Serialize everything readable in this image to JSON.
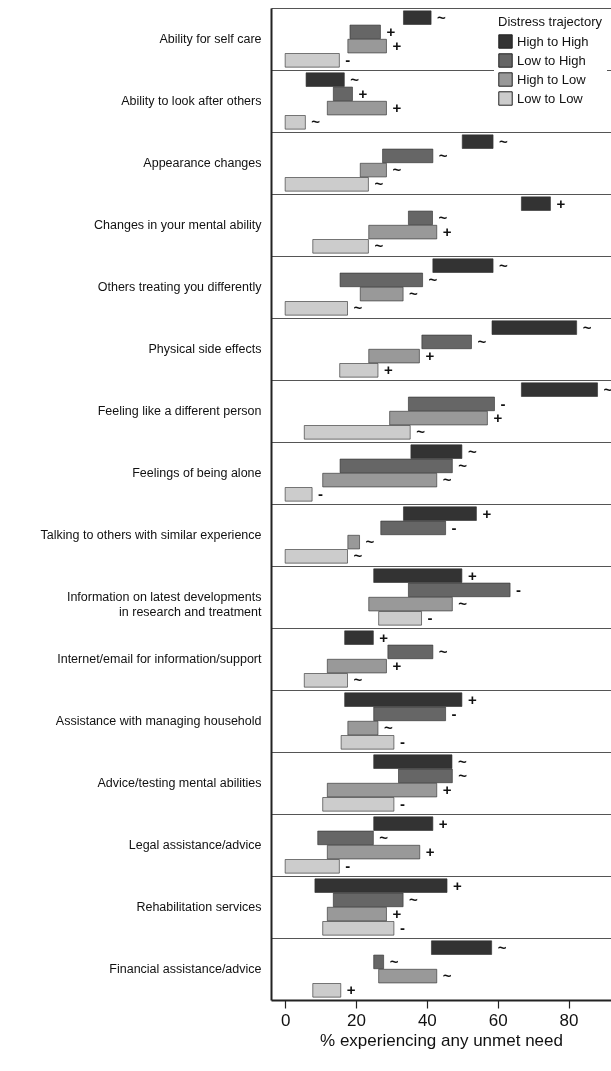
{
  "chart_data": {
    "type": "bar",
    "orientation": "horizontal",
    "xlabel": "% experiencing any unmet need",
    "legend_title": "Distress trajectory",
    "legend": "top right",
    "grid": "y",
    "xlim": [
      -4,
      92
    ],
    "xticks": [
      0,
      20,
      40,
      60,
      80
    ],
    "categories": [
      "Ability for self care",
      "Ability to look after others",
      "Appearance changes",
      "Changes in your mental ability",
      "Others treating you differently",
      "Physical side effects",
      "Feeling like a different person",
      "Feelings of being alone",
      "Talking to others with similar experience",
      "Information on latest developments in research and treatment",
      "Internet/email for information/support",
      "Assistance with managing household",
      "Advice/testing mental abilities",
      "Legal assistance/advice",
      "Rehabilitation services",
      "Financial assistance/advice"
    ],
    "series": [
      {
        "name": "High to High",
        "color": "#333333",
        "base": [
          33.4,
          5.9,
          50.0,
          66.7,
          41.7,
          58.4,
          66.7,
          35.5,
          33.4,
          25.0,
          16.8,
          16.8,
          25.0,
          25.0,
          8.4,
          41.3
        ],
        "values": [
          7.8,
          10.8,
          8.7,
          8.2,
          17.0,
          23.9,
          21.5,
          14.4,
          20.6,
          24.9,
          8.1,
          33.1,
          22.1,
          16.7,
          37.3,
          17.0
        ],
        "value_labels": [
          "~",
          "~",
          "~",
          "+",
          "~",
          "~",
          "~",
          "~",
          "+",
          "+",
          "+",
          "+",
          "~",
          "+",
          "+",
          "~"
        ]
      },
      {
        "name": "Low to High",
        "color": "#666666",
        "base": [
          18.3,
          13.6,
          27.5,
          34.8,
          15.5,
          38.6,
          34.8,
          15.5,
          27.0,
          34.8,
          29.0,
          25.0,
          32.0,
          9.2,
          13.6,
          25.0
        ],
        "values": [
          8.6,
          5.4,
          14.2,
          6.8,
          23.3,
          14.0,
          24.3,
          31.7,
          18.3,
          28.7,
          12.7,
          20.3,
          15.2,
          15.7,
          19.7,
          2.8
        ],
        "value_labels": [
          "+",
          "+",
          "~",
          "~",
          "~",
          "~",
          "-",
          "~",
          "-",
          "-",
          "~",
          "-",
          "~",
          "~",
          "~",
          "~"
        ]
      },
      {
        "name": "High to Low",
        "color": "#999999",
        "base": [
          17.7,
          11.9,
          21.2,
          23.6,
          21.2,
          23.6,
          29.5,
          10.6,
          17.7,
          23.6,
          11.9,
          17.7,
          11.9,
          11.9,
          11.9,
          26.4
        ],
        "values": [
          10.9,
          16.7,
          7.4,
          19.2,
          12.1,
          14.3,
          27.6,
          32.2,
          3.3,
          23.6,
          16.7,
          8.5,
          30.9,
          26.1,
          16.7,
          16.4
        ],
        "value_labels": [
          "+",
          "+",
          "~",
          "+",
          "~",
          "+",
          "+",
          "~",
          "~",
          "~",
          "+",
          "~",
          "+",
          "+",
          "+",
          "~"
        ]
      },
      {
        "name": "Low to Low",
        "color": "#cccccc",
        "base": [
          0,
          0,
          0,
          7.8,
          0,
          15.4,
          5.4,
          0,
          0,
          26.4,
          5.4,
          15.8,
          10.6,
          0,
          10.6,
          7.8
        ],
        "values": [
          15.3,
          5.7,
          23.5,
          15.7,
          17.6,
          10.8,
          29.9,
          7.6,
          17.6,
          12.1,
          12.2,
          14.9,
          20.1,
          15.3,
          20.1,
          7.9
        ],
        "value_labels": [
          "-",
          "~",
          "~",
          "~",
          "~",
          "+",
          "~",
          "-",
          "~",
          "-",
          "~",
          "-",
          "-",
          "-",
          "-",
          "+"
        ]
      }
    ]
  }
}
